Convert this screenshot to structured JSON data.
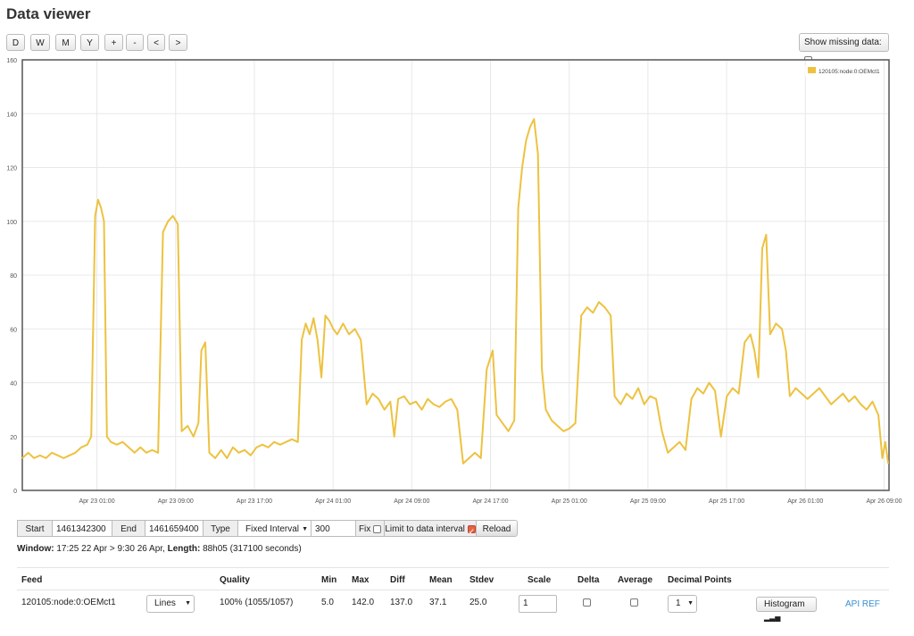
{
  "page": {
    "title": "Data viewer"
  },
  "toolbar": {
    "buttons": [
      "D",
      "W",
      "M",
      "Y",
      "+",
      "-",
      "<",
      ">"
    ],
    "show_missing_label": "Show missing data:"
  },
  "chart_data": {
    "type": "line",
    "y_ticks": [
      "0",
      "20",
      "40",
      "60",
      "80",
      "100",
      "120",
      "140",
      "160"
    ],
    "ylim": [
      0,
      160
    ],
    "x_ticks": [
      "Apr 23 01:00",
      "Apr 23 09:00",
      "Apr 23 17:00",
      "Apr 24 01:00",
      "Apr 24 09:00",
      "Apr 24 17:00",
      "Apr 25 01:00",
      "Apr 25 09:00",
      "Apr 25 17:00",
      "Apr 26 01:00",
      "Apr 26 09:00"
    ],
    "x_start_hour": 0,
    "x_end_hour": 88.08,
    "x_tick_hours": [
      7.58,
      15.58,
      23.58,
      31.58,
      39.58,
      47.58,
      55.58,
      63.58,
      71.58,
      79.58,
      87.58
    ],
    "grid": true,
    "legend_position": "top-right",
    "color": "#edc240",
    "series": [
      {
        "name": "120105:node:0:OEMct1",
        "points": [
          [
            0.0,
            12
          ],
          [
            0.6,
            14
          ],
          [
            1.2,
            12
          ],
          [
            1.8,
            13
          ],
          [
            2.4,
            12
          ],
          [
            3.0,
            14
          ],
          [
            3.6,
            13
          ],
          [
            4.2,
            12
          ],
          [
            4.8,
            13
          ],
          [
            5.4,
            14
          ],
          [
            6.0,
            16
          ],
          [
            6.6,
            17
          ],
          [
            7.0,
            20
          ],
          [
            7.4,
            102
          ],
          [
            7.7,
            108
          ],
          [
            8.0,
            105
          ],
          [
            8.3,
            100
          ],
          [
            8.6,
            20
          ],
          [
            9.0,
            18
          ],
          [
            9.6,
            17
          ],
          [
            10.2,
            18
          ],
          [
            10.8,
            16
          ],
          [
            11.4,
            14
          ],
          [
            12.0,
            16
          ],
          [
            12.6,
            14
          ],
          [
            13.2,
            15
          ],
          [
            13.8,
            14
          ],
          [
            14.3,
            96
          ],
          [
            14.8,
            100
          ],
          [
            15.3,
            102
          ],
          [
            15.8,
            99
          ],
          [
            16.2,
            22
          ],
          [
            16.8,
            24
          ],
          [
            17.4,
            20
          ],
          [
            17.9,
            25
          ],
          [
            18.2,
            52
          ],
          [
            18.6,
            55
          ],
          [
            19.0,
            14
          ],
          [
            19.6,
            12
          ],
          [
            20.2,
            15
          ],
          [
            20.8,
            12
          ],
          [
            21.4,
            16
          ],
          [
            22.0,
            14
          ],
          [
            22.6,
            15
          ],
          [
            23.2,
            13
          ],
          [
            23.8,
            16
          ],
          [
            24.4,
            17
          ],
          [
            25.0,
            16
          ],
          [
            25.6,
            18
          ],
          [
            26.2,
            17
          ],
          [
            26.8,
            18
          ],
          [
            27.4,
            19
          ],
          [
            28.0,
            18
          ],
          [
            28.4,
            56
          ],
          [
            28.8,
            62
          ],
          [
            29.2,
            58
          ],
          [
            29.6,
            64
          ],
          [
            30.0,
            56
          ],
          [
            30.4,
            42
          ],
          [
            30.8,
            65
          ],
          [
            31.2,
            63
          ],
          [
            31.6,
            60
          ],
          [
            32.0,
            58
          ],
          [
            32.6,
            62
          ],
          [
            33.2,
            58
          ],
          [
            33.8,
            60
          ],
          [
            34.4,
            56
          ],
          [
            35.0,
            32
          ],
          [
            35.6,
            36
          ],
          [
            36.2,
            34
          ],
          [
            36.8,
            30
          ],
          [
            37.4,
            33
          ],
          [
            37.8,
            20
          ],
          [
            38.2,
            34
          ],
          [
            38.8,
            35
          ],
          [
            39.4,
            32
          ],
          [
            40.0,
            33
          ],
          [
            40.6,
            30
          ],
          [
            41.2,
            34
          ],
          [
            41.8,
            32
          ],
          [
            42.4,
            31
          ],
          [
            43.0,
            33
          ],
          [
            43.6,
            34
          ],
          [
            44.2,
            30
          ],
          [
            44.8,
            10
          ],
          [
            45.4,
            12
          ],
          [
            46.0,
            14
          ],
          [
            46.6,
            12
          ],
          [
            47.2,
            45
          ],
          [
            47.8,
            52
          ],
          [
            48.2,
            28
          ],
          [
            48.8,
            25
          ],
          [
            49.4,
            22
          ],
          [
            50.0,
            26
          ],
          [
            50.4,
            105
          ],
          [
            50.8,
            120
          ],
          [
            51.2,
            130
          ],
          [
            51.6,
            135
          ],
          [
            52.0,
            138
          ],
          [
            52.4,
            125
          ],
          [
            52.8,
            45
          ],
          [
            53.2,
            30
          ],
          [
            53.8,
            26
          ],
          [
            54.4,
            24
          ],
          [
            55.0,
            22
          ],
          [
            55.6,
            23
          ],
          [
            56.2,
            25
          ],
          [
            56.8,
            65
          ],
          [
            57.4,
            68
          ],
          [
            58.0,
            66
          ],
          [
            58.6,
            70
          ],
          [
            59.2,
            68
          ],
          [
            59.8,
            65
          ],
          [
            60.2,
            35
          ],
          [
            60.8,
            32
          ],
          [
            61.4,
            36
          ],
          [
            62.0,
            34
          ],
          [
            62.6,
            38
          ],
          [
            63.2,
            32
          ],
          [
            63.8,
            35
          ],
          [
            64.4,
            34
          ],
          [
            65.0,
            22
          ],
          [
            65.6,
            14
          ],
          [
            66.2,
            16
          ],
          [
            66.8,
            18
          ],
          [
            67.4,
            15
          ],
          [
            68.0,
            34
          ],
          [
            68.6,
            38
          ],
          [
            69.2,
            36
          ],
          [
            69.8,
            40
          ],
          [
            70.4,
            37
          ],
          [
            71.0,
            20
          ],
          [
            71.6,
            35
          ],
          [
            72.2,
            38
          ],
          [
            72.8,
            36
          ],
          [
            73.4,
            55
          ],
          [
            74.0,
            58
          ],
          [
            74.4,
            52
          ],
          [
            74.8,
            42
          ],
          [
            75.2,
            90
          ],
          [
            75.6,
            95
          ],
          [
            76.0,
            58
          ],
          [
            76.6,
            62
          ],
          [
            77.2,
            60
          ],
          [
            77.6,
            52
          ],
          [
            78.0,
            35
          ],
          [
            78.6,
            38
          ],
          [
            79.2,
            36
          ],
          [
            79.8,
            34
          ],
          [
            80.4,
            36
          ],
          [
            81.0,
            38
          ],
          [
            81.6,
            35
          ],
          [
            82.2,
            32
          ],
          [
            82.8,
            34
          ],
          [
            83.4,
            36
          ],
          [
            84.0,
            33
          ],
          [
            84.6,
            35
          ],
          [
            85.2,
            32
          ],
          [
            85.8,
            30
          ],
          [
            86.4,
            33
          ],
          [
            87.0,
            28
          ],
          [
            87.4,
            12
          ],
          [
            87.7,
            18
          ],
          [
            88.0,
            10
          ]
        ]
      }
    ]
  },
  "controls": {
    "start_label": "Start",
    "start_value": "1461342300",
    "end_label": "End",
    "end_value": "1461659400",
    "type_label": "Type",
    "type_value": "Fixed Interval",
    "interval_value": "300",
    "fix_label": "Fix",
    "limit_label": "Limit to data interval",
    "reload_label": "Reload"
  },
  "window_info": {
    "window_label": "Window:",
    "window_value": "17:25 22 Apr > 9:30 26 Apr,",
    "length_label": "Length:",
    "length_value": "88h05 (317100 seconds)"
  },
  "table": {
    "headers": [
      "Feed",
      "Quality",
      "Min",
      "Max",
      "Diff",
      "Mean",
      "Stdev",
      "Scale",
      "Delta",
      "Average",
      "Decimal Points"
    ],
    "row": {
      "feed": "120105:node:0:OEMct1",
      "mode": "Lines",
      "quality": "100% (1055/1057)",
      "min": "5.0",
      "max": "142.0",
      "diff": "137.0",
      "mean": "37.1",
      "stdev": "25.0",
      "scale": "1",
      "decimal_points": "1",
      "histogram_label": "Histogram",
      "api_ref": "API REF"
    }
  }
}
